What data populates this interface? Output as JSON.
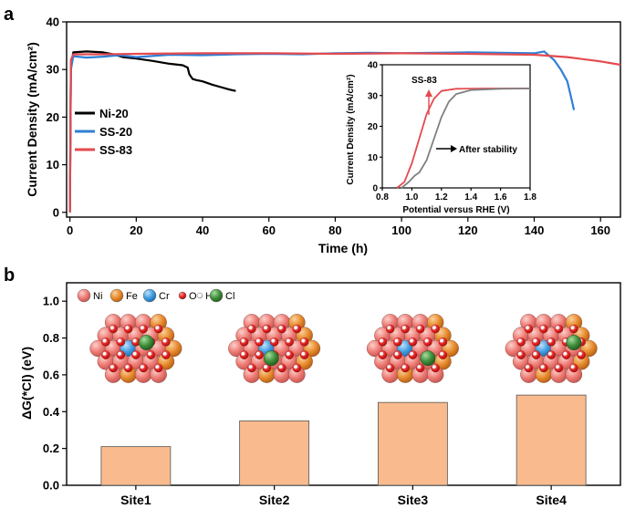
{
  "panel_a_label": "a",
  "panel_b_label": "b",
  "chart_data": [
    {
      "type": "line",
      "xlabel": "Time (h)",
      "ylabel": "Current Density (mA/cm²)",
      "xlim": [
        -1,
        166
      ],
      "ylim": [
        -1,
        40
      ],
      "xticks": [
        "0",
        "20",
        "40",
        "60",
        "80",
        "100",
        "120",
        "140",
        "160"
      ],
      "yticks": [
        "0",
        "10",
        "20",
        "30",
        "40"
      ],
      "legend_position": "left",
      "series": [
        {
          "name": "Ni-20",
          "color": "#000000",
          "points": [
            [
              0,
              0
            ],
            [
              0.3,
              30
            ],
            [
              1,
              33.6
            ],
            [
              5,
              33.8
            ],
            [
              10,
              33.6
            ],
            [
              13,
              33.2
            ],
            [
              16,
              32.6
            ],
            [
              20,
              32.3
            ],
            [
              25,
              31.8
            ],
            [
              30,
              31.2
            ],
            [
              34,
              30.9
            ],
            [
              35.5,
              30.4
            ],
            [
              36,
              29
            ],
            [
              37,
              28
            ],
            [
              38,
              27.8
            ],
            [
              40,
              27.5
            ],
            [
              43,
              26.8
            ],
            [
              46,
              26.2
            ],
            [
              48,
              25.8
            ],
            [
              50,
              25.5
            ]
          ]
        },
        {
          "name": "SS-20",
          "color": "#2f7fd6",
          "points": [
            [
              0,
              0
            ],
            [
              0.3,
              30
            ],
            [
              1,
              32.8
            ],
            [
              5,
              32.5
            ],
            [
              10,
              32.7
            ],
            [
              15,
              33
            ],
            [
              20,
              32.6
            ],
            [
              30,
              33.1
            ],
            [
              40,
              33
            ],
            [
              50,
              33.2
            ],
            [
              60,
              33.3
            ],
            [
              70,
              33.2
            ],
            [
              80,
              33.4
            ],
            [
              90,
              33.5
            ],
            [
              100,
              33.4
            ],
            [
              110,
              33.5
            ],
            [
              120,
              33.6
            ],
            [
              130,
              33.5
            ],
            [
              140,
              33.4
            ],
            [
              143,
              33.8
            ],
            [
              146,
              32
            ],
            [
              148,
              30
            ],
            [
              150,
              27.5
            ],
            [
              151,
              24.5
            ],
            [
              152,
              21.5
            ]
          ]
        },
        {
          "name": "SS-83",
          "color": "#e44a4f",
          "points": [
            [
              0,
              0
            ],
            [
              0.3,
              32
            ],
            [
              1,
              33.2
            ],
            [
              10,
              33.2
            ],
            [
              20,
              33.3
            ],
            [
              40,
              33.4
            ],
            [
              60,
              33.4
            ],
            [
              80,
              33.3
            ],
            [
              100,
              33.4
            ],
            [
              120,
              33.3
            ],
            [
              140,
              33.1
            ],
            [
              150,
              32.6
            ],
            [
              160,
              31.7
            ],
            [
              166,
              31
            ]
          ]
        }
      ]
    },
    {
      "type": "line",
      "inset_of": 0,
      "title": "",
      "xlabel": "Potential versus RHE (V)",
      "ylabel": "Current Density (mA/cm²)",
      "xlim": [
        0.8,
        1.8
      ],
      "ylim": [
        0,
        40
      ],
      "xticks": [
        "0.8",
        "1.0",
        "1.2",
        "1.4",
        "1.6",
        "1.8"
      ],
      "yticks": [
        "0",
        "10",
        "20",
        "30",
        "40"
      ],
      "annotations": [
        "SS-83",
        "After stability"
      ],
      "series": [
        {
          "name": "SS-83",
          "color": "#e44a4f",
          "points": [
            [
              0.9,
              0
            ],
            [
              0.95,
              2
            ],
            [
              1.0,
              8
            ],
            [
              1.05,
              16
            ],
            [
              1.1,
              24
            ],
            [
              1.15,
              29
            ],
            [
              1.2,
              31.5
            ],
            [
              1.3,
              32.2
            ],
            [
              1.5,
              32.3
            ],
            [
              1.8,
              32.3
            ]
          ]
        },
        {
          "name": "After stability",
          "color": "#808080",
          "points": [
            [
              0.93,
              0
            ],
            [
              0.98,
              2
            ],
            [
              1.02,
              4
            ],
            [
              1.05,
              5
            ],
            [
              1.1,
              9
            ],
            [
              1.15,
              16
            ],
            [
              1.2,
              23
            ],
            [
              1.25,
              28
            ],
            [
              1.3,
              30.5
            ],
            [
              1.4,
              31.8
            ],
            [
              1.6,
              32.2
            ],
            [
              1.8,
              32.3
            ]
          ]
        }
      ]
    },
    {
      "type": "bar",
      "xlabel": "",
      "ylabel": "ΔG(*Cl) (eV)",
      "ylim": [
        0,
        1.1
      ],
      "yticks": [
        "0.0",
        "0.2",
        "0.4",
        "0.6",
        "0.8",
        "1.0"
      ],
      "categories": [
        "Site1",
        "Site2",
        "Site3",
        "Site4"
      ],
      "values": [
        0.21,
        0.35,
        0.45,
        0.49
      ],
      "bar_color": "#f9bb8e",
      "element_legend": [
        {
          "label": "Ni",
          "color": "#ee7a73"
        },
        {
          "label": "Fe",
          "color": "#e88a2c"
        },
        {
          "label": "Cr",
          "color": "#3d9be0"
        },
        {
          "label": "O",
          "color": "#e62222"
        },
        {
          "label": "H",
          "color": "#ffffff"
        },
        {
          "label": "Cl",
          "color": "#3e8f3a"
        }
      ]
    }
  ]
}
